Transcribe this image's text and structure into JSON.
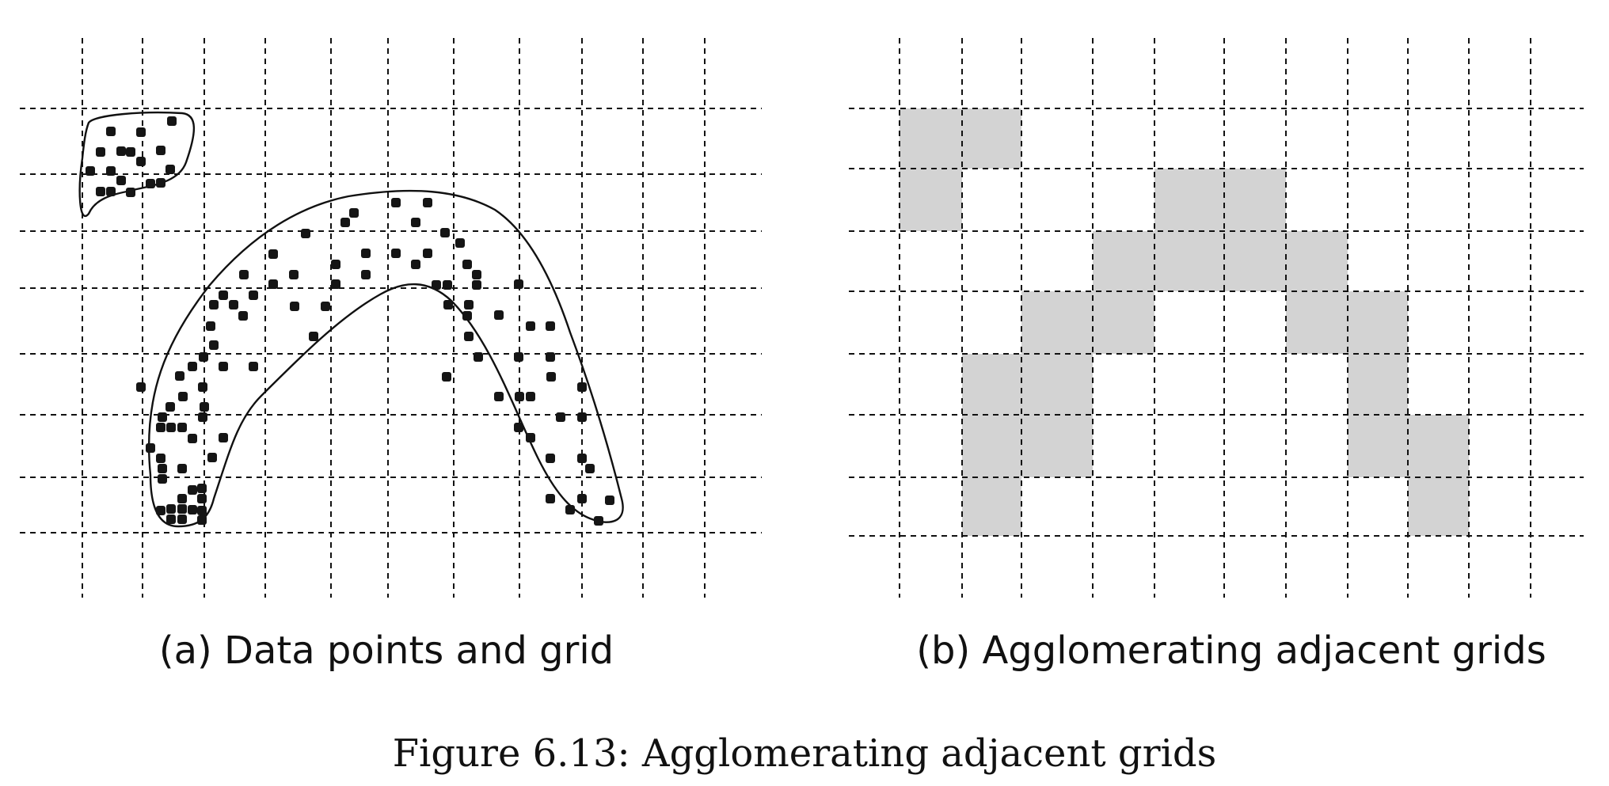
{
  "panel_a": {
    "caption": "(a) Data points and grid"
  },
  "panel_b": {
    "caption": "(b) Agglomerating adjacent grids",
    "grid_columns": 11,
    "grid_rows": 7,
    "shaded_cells": [
      [
        0,
        0
      ],
      [
        1,
        0
      ],
      [
        0,
        1
      ],
      [
        4,
        1
      ],
      [
        5,
        1
      ],
      [
        3,
        2
      ],
      [
        4,
        2
      ],
      [
        5,
        2
      ],
      [
        6,
        2
      ],
      [
        2,
        3
      ],
      [
        3,
        3
      ],
      [
        6,
        3
      ],
      [
        7,
        3
      ],
      [
        1,
        4
      ],
      [
        2,
        4
      ],
      [
        7,
        4
      ],
      [
        1,
        5
      ],
      [
        2,
        5
      ],
      [
        7,
        5
      ],
      [
        8,
        5
      ],
      [
        1,
        6
      ],
      [
        8,
        6
      ]
    ]
  },
  "figure_caption": "Figure 6.13: Agglomerating adjacent grids",
  "colors": {
    "lines": "#111111",
    "points": "#151515",
    "shaded_cell": "#d3d3d3",
    "background": "#ffffff"
  }
}
